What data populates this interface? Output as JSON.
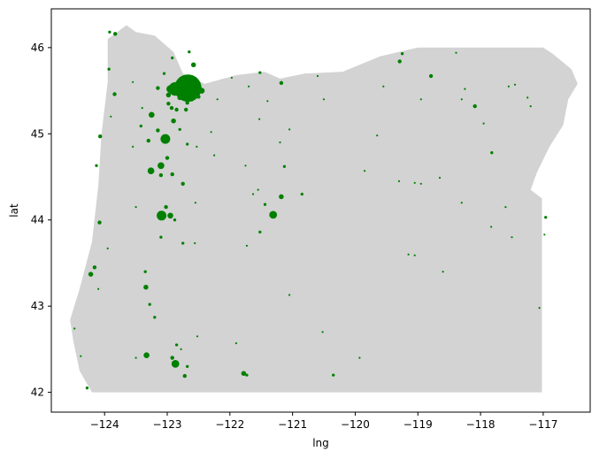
{
  "chart_data": {
    "type": "scatter",
    "title": "",
    "xlabel": "lng",
    "ylabel": "lat",
    "xlim": [
      -124.85,
      -116.25
    ],
    "ylim": [
      41.77,
      46.45
    ],
    "xticks": [
      -124,
      -123,
      -122,
      -121,
      -120,
      -119,
      -118,
      -117
    ],
    "yticks": [
      42,
      43,
      44,
      45,
      46
    ],
    "xtick_labels": [
      "−124",
      "−123",
      "−122",
      "−121",
      "−120",
      "−119",
      "−118",
      "−117"
    ],
    "ytick_labels": [
      "42",
      "43",
      "44",
      "45",
      "46"
    ],
    "grid": false,
    "marker_color": "#008000",
    "background_shape_color": "#d3d3d3",
    "state_outline": [
      [
        -124.55,
        42.84
      ],
      [
        -124.4,
        43.2
      ],
      [
        -124.2,
        43.75
      ],
      [
        -124.1,
        44.4
      ],
      [
        -124.05,
        45.0
      ],
      [
        -123.95,
        45.6
      ],
      [
        -123.95,
        46.1
      ],
      [
        -123.65,
        46.26
      ],
      [
        -123.5,
        46.18
      ],
      [
        -123.2,
        46.14
      ],
      [
        -122.9,
        45.95
      ],
      [
        -122.75,
        45.7
      ],
      [
        -122.4,
        45.58
      ],
      [
        -121.9,
        45.68
      ],
      [
        -121.45,
        45.72
      ],
      [
        -121.2,
        45.64
      ],
      [
        -120.8,
        45.7
      ],
      [
        -120.2,
        45.72
      ],
      [
        -119.6,
        45.9
      ],
      [
        -119.0,
        46.0
      ],
      [
        -117.0,
        46.0
      ],
      [
        -116.85,
        45.93
      ],
      [
        -116.55,
        45.75
      ],
      [
        -116.45,
        45.58
      ],
      [
        -116.6,
        45.4
      ],
      [
        -116.68,
        45.1
      ],
      [
        -116.9,
        44.85
      ],
      [
        -117.1,
        44.55
      ],
      [
        -117.2,
        44.35
      ],
      [
        -117.02,
        44.25
      ],
      [
        -117.02,
        44.0
      ],
      [
        -117.02,
        42.0
      ],
      [
        -124.2,
        42.0
      ],
      [
        -124.4,
        42.25
      ],
      [
        -124.5,
        42.6
      ],
      [
        -124.55,
        42.84
      ]
    ],
    "points": [
      [
        -122.67,
        45.53,
        28
      ],
      [
        -122.87,
        45.52,
        14
      ],
      [
        -122.55,
        45.52,
        12
      ],
      [
        -122.78,
        45.46,
        8
      ],
      [
        -122.62,
        45.42,
        8
      ],
      [
        -122.95,
        45.52,
        8
      ],
      [
        -122.45,
        45.5,
        6
      ],
      [
        -122.98,
        45.45,
        5
      ],
      [
        -122.75,
        45.6,
        5
      ],
      [
        -122.6,
        45.63,
        4
      ],
      [
        -122.8,
        45.42,
        5
      ],
      [
        -122.5,
        45.43,
        4
      ],
      [
        -123.15,
        45.53,
        4
      ],
      [
        -122.93,
        45.3,
        4
      ],
      [
        -122.68,
        45.36,
        4
      ],
      [
        -122.98,
        45.35,
        4
      ],
      [
        -122.58,
        45.8,
        5
      ],
      [
        -122.65,
        45.95,
        3
      ],
      [
        -122.92,
        45.88,
        3
      ],
      [
        -123.05,
        45.7,
        3
      ],
      [
        -122.9,
        45.15,
        5
      ],
      [
        -122.85,
        45.28,
        4
      ],
      [
        -122.7,
        45.28,
        4
      ],
      [
        -122.8,
        45.05,
        3
      ],
      [
        -123.03,
        44.94,
        10
      ],
      [
        -123.25,
        45.22,
        6
      ],
      [
        -123.15,
        45.04,
        4
      ],
      [
        -123.3,
        44.92,
        4
      ],
      [
        -123.1,
        44.63,
        7
      ],
      [
        -123.26,
        44.57,
        7
      ],
      [
        -123.1,
        44.52,
        4
      ],
      [
        -122.92,
        44.53,
        4
      ],
      [
        -122.75,
        44.42,
        4
      ],
      [
        -123.0,
        44.72,
        4
      ],
      [
        -122.68,
        44.88,
        3
      ],
      [
        -123.09,
        44.05,
        10
      ],
      [
        -122.95,
        44.05,
        6
      ],
      [
        -123.02,
        44.15,
        4
      ],
      [
        -122.88,
        44.0,
        3
      ],
      [
        -123.1,
        43.8,
        3
      ],
      [
        -122.75,
        43.73,
        3
      ],
      [
        -123.34,
        43.22,
        5
      ],
      [
        -123.35,
        43.4,
        3
      ],
      [
        -123.28,
        43.02,
        3
      ],
      [
        -123.2,
        42.87,
        3
      ],
      [
        -122.87,
        42.33,
        8
      ],
      [
        -122.92,
        42.4,
        4
      ],
      [
        -123.33,
        42.43,
        6
      ],
      [
        -122.72,
        42.19,
        4
      ],
      [
        -122.85,
        42.55,
        3
      ],
      [
        -122.68,
        42.3,
        3
      ],
      [
        -121.31,
        44.06,
        8
      ],
      [
        -121.18,
        44.27,
        5
      ],
      [
        -121.13,
        44.62,
        3
      ],
      [
        -121.44,
        44.18,
        3
      ],
      [
        -121.52,
        43.86,
        3
      ],
      [
        -120.85,
        44.3,
        3
      ],
      [
        -121.78,
        42.22,
        5
      ],
      [
        -121.73,
        42.2,
        3
      ],
      [
        -121.18,
        45.59,
        4
      ],
      [
        -121.52,
        45.71,
        3
      ],
      [
        -120.6,
        45.67,
        2
      ],
      [
        -118.79,
        45.67,
        4
      ],
      [
        -119.29,
        45.84,
        4
      ],
      [
        -119.25,
        45.93,
        3
      ],
      [
        -118.39,
        45.94,
        2
      ],
      [
        -118.09,
        45.32,
        4
      ],
      [
        -117.82,
        44.78,
        3
      ],
      [
        -116.96,
        44.03,
        3
      ],
      [
        -116.98,
        43.83,
        2
      ],
      [
        -124.22,
        43.37,
        5
      ],
      [
        -124.16,
        43.45,
        4
      ],
      [
        -124.08,
        43.97,
        4
      ],
      [
        -124.13,
        44.63,
        3
      ],
      [
        -124.07,
        44.97,
        4
      ],
      [
        -123.84,
        45.46,
        4
      ],
      [
        -123.93,
        45.75,
        3
      ],
      [
        -123.83,
        46.16,
        4
      ],
      [
        -123.92,
        46.18,
        3
      ],
      [
        -124.28,
        42.05,
        3
      ],
      [
        -124.38,
        42.42,
        2
      ],
      [
        -124.48,
        42.74,
        2
      ],
      [
        -123.55,
        45.6,
        2
      ],
      [
        -123.4,
        45.3,
        2
      ],
      [
        -123.42,
        45.09,
        3
      ],
      [
        -122.3,
        45.02,
        2
      ],
      [
        -122.53,
        44.85,
        2
      ],
      [
        -122.56,
        43.73,
        2
      ],
      [
        -122.78,
        42.5,
        2
      ],
      [
        -122.52,
        42.65,
        2
      ],
      [
        -123.5,
        42.4,
        2
      ],
      [
        -123.95,
        43.67,
        2
      ],
      [
        -124.1,
        43.2,
        2
      ],
      [
        -123.5,
        44.15,
        2
      ],
      [
        -123.55,
        44.85,
        2
      ],
      [
        -123.9,
        45.2,
        2
      ],
      [
        -122.2,
        45.4,
        2
      ],
      [
        -122.25,
        44.75,
        2
      ],
      [
        -121.97,
        45.65,
        2
      ],
      [
        -121.7,
        45.55,
        2
      ],
      [
        -121.4,
        45.38,
        2
      ],
      [
        -121.05,
        45.05,
        2
      ],
      [
        -121.2,
        44.9,
        2
      ],
      [
        -121.75,
        44.63,
        2
      ],
      [
        -121.63,
        44.3,
        2
      ],
      [
        -121.73,
        43.7,
        2
      ],
      [
        -121.05,
        43.13,
        2
      ],
      [
        -120.52,
        42.7,
        2
      ],
      [
        -120.35,
        42.2,
        3
      ],
      [
        -119.93,
        42.4,
        2
      ],
      [
        -119.85,
        44.57,
        2
      ],
      [
        -119.65,
        44.98,
        2
      ],
      [
        -119.3,
        44.45,
        2
      ],
      [
        -119.05,
        44.43,
        2
      ],
      [
        -118.95,
        44.42,
        2
      ],
      [
        -118.65,
        44.49,
        2
      ],
      [
        -119.15,
        43.6,
        2
      ],
      [
        -119.05,
        43.59,
        2
      ],
      [
        -118.6,
        43.4,
        2
      ],
      [
        -118.3,
        45.4,
        2
      ],
      [
        -118.25,
        45.52,
        2
      ],
      [
        -117.55,
        45.55,
        2
      ],
      [
        -117.95,
        45.12,
        2
      ],
      [
        -117.83,
        43.92,
        2
      ],
      [
        -117.5,
        43.8,
        2
      ],
      [
        -117.06,
        42.98,
        2
      ],
      [
        -118.3,
        44.2,
        2
      ],
      [
        -118.95,
        45.4,
        2
      ],
      [
        -119.55,
        45.55,
        2
      ],
      [
        -117.45,
        45.57,
        2
      ],
      [
        -117.25,
        45.42,
        2
      ],
      [
        -117.2,
        45.32,
        2
      ],
      [
        -117.6,
        44.15,
        2
      ],
      [
        -121.53,
        45.17,
        2
      ],
      [
        -121.55,
        44.35,
        2
      ],
      [
        -120.5,
        45.4,
        2
      ],
      [
        -121.9,
        42.57,
        2
      ],
      [
        -122.55,
        44.2,
        2
      ]
    ]
  }
}
